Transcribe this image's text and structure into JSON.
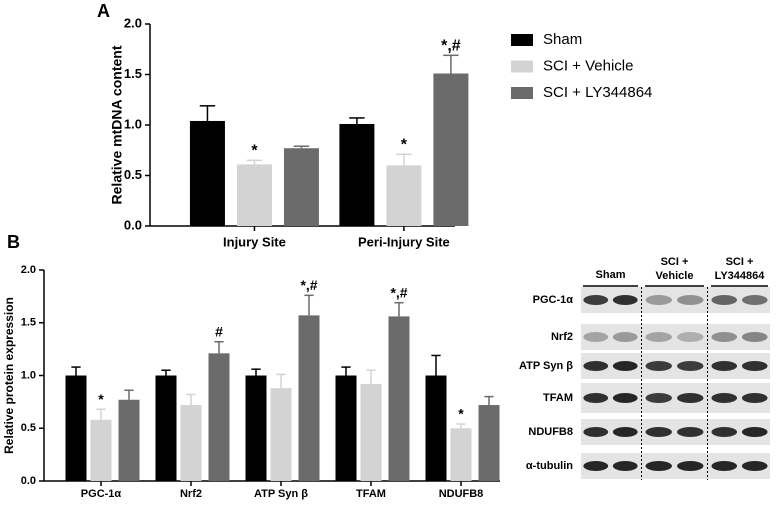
{
  "chart_data": [
    {
      "type": "bar",
      "panel": "A",
      "y_label": "Relative mtDNA content",
      "categories": [
        "Injury Site",
        "Peri-Injury Site"
      ],
      "series": [
        {
          "name": "Sham",
          "color": "#000000",
          "values": [
            1.04,
            1.01
          ],
          "errors": [
            0.15,
            0.06
          ],
          "markers": [
            null,
            null
          ]
        },
        {
          "name": "SCI + Vehicle",
          "color": "#d3d3d3",
          "values": [
            0.61,
            0.6
          ],
          "errors": [
            0.04,
            0.11
          ],
          "markers": [
            "*",
            "*"
          ]
        },
        {
          "name": "SCI + LY344864",
          "color": "#6b6b6b",
          "values": [
            0.77,
            1.51
          ],
          "errors": [
            0.02,
            0.18
          ],
          "markers": [
            null,
            "*,#"
          ]
        }
      ],
      "ylim": [
        0,
        2
      ],
      "yticks": [
        {
          "value": 0,
          "label": "0.0"
        },
        {
          "value": 0.5,
          "label": "0.5"
        },
        {
          "value": 1,
          "label": "1.0"
        },
        {
          "value": 1.5,
          "label": "1.5"
        },
        {
          "value": 2,
          "label": "2.0"
        }
      ],
      "legend": "right"
    },
    {
      "type": "bar",
      "panel": "B",
      "y_label": "Relative protein expression",
      "categories": [
        "PGC-1α",
        "Nrf2",
        "ATP Syn β",
        "TFAM",
        "NDUFB8"
      ],
      "series": [
        {
          "color": "#000000",
          "values": [
            1.0,
            1.0,
            1.0,
            1.0,
            1.0
          ],
          "errors": [
            0.08,
            0.05,
            0.06,
            0.08,
            0.19
          ],
          "markers": [
            null,
            null,
            null,
            null,
            null
          ]
        },
        {
          "color": "#d3d3d3",
          "values": [
            0.58,
            0.72,
            0.88,
            0.92,
            0.5
          ],
          "errors": [
            0.1,
            0.1,
            0.13,
            0.13,
            0.04
          ],
          "markers": [
            "*",
            null,
            null,
            null,
            "*"
          ]
        },
        {
          "color": "#6b6b6b",
          "values": [
            0.77,
            1.21,
            1.57,
            1.56,
            0.72
          ],
          "errors": [
            0.09,
            0.11,
            0.19,
            0.13,
            0.08
          ],
          "markers": [
            null,
            "#",
            "*,#",
            "*,#",
            null
          ]
        }
      ],
      "ylim": [
        0,
        2
      ],
      "yticks": [
        {
          "value": 0,
          "label": "0.0"
        },
        {
          "value": 0.5,
          "label": "0.5"
        },
        {
          "value": 1,
          "label": "1.0"
        },
        {
          "value": 1.5,
          "label": "1.5"
        },
        {
          "value": 2,
          "label": "2.0"
        }
      ]
    }
  ],
  "blot": {
    "headers": [
      [
        "Sham"
      ],
      [
        "SCI +",
        "Vehicle"
      ],
      [
        "SCI +",
        "LY344864"
      ]
    ],
    "rows": [
      "PGC-1α",
      "Nrf2",
      "ATP Syn β",
      "TFAM",
      "NDUFB8",
      "α-tubulin"
    ]
  }
}
